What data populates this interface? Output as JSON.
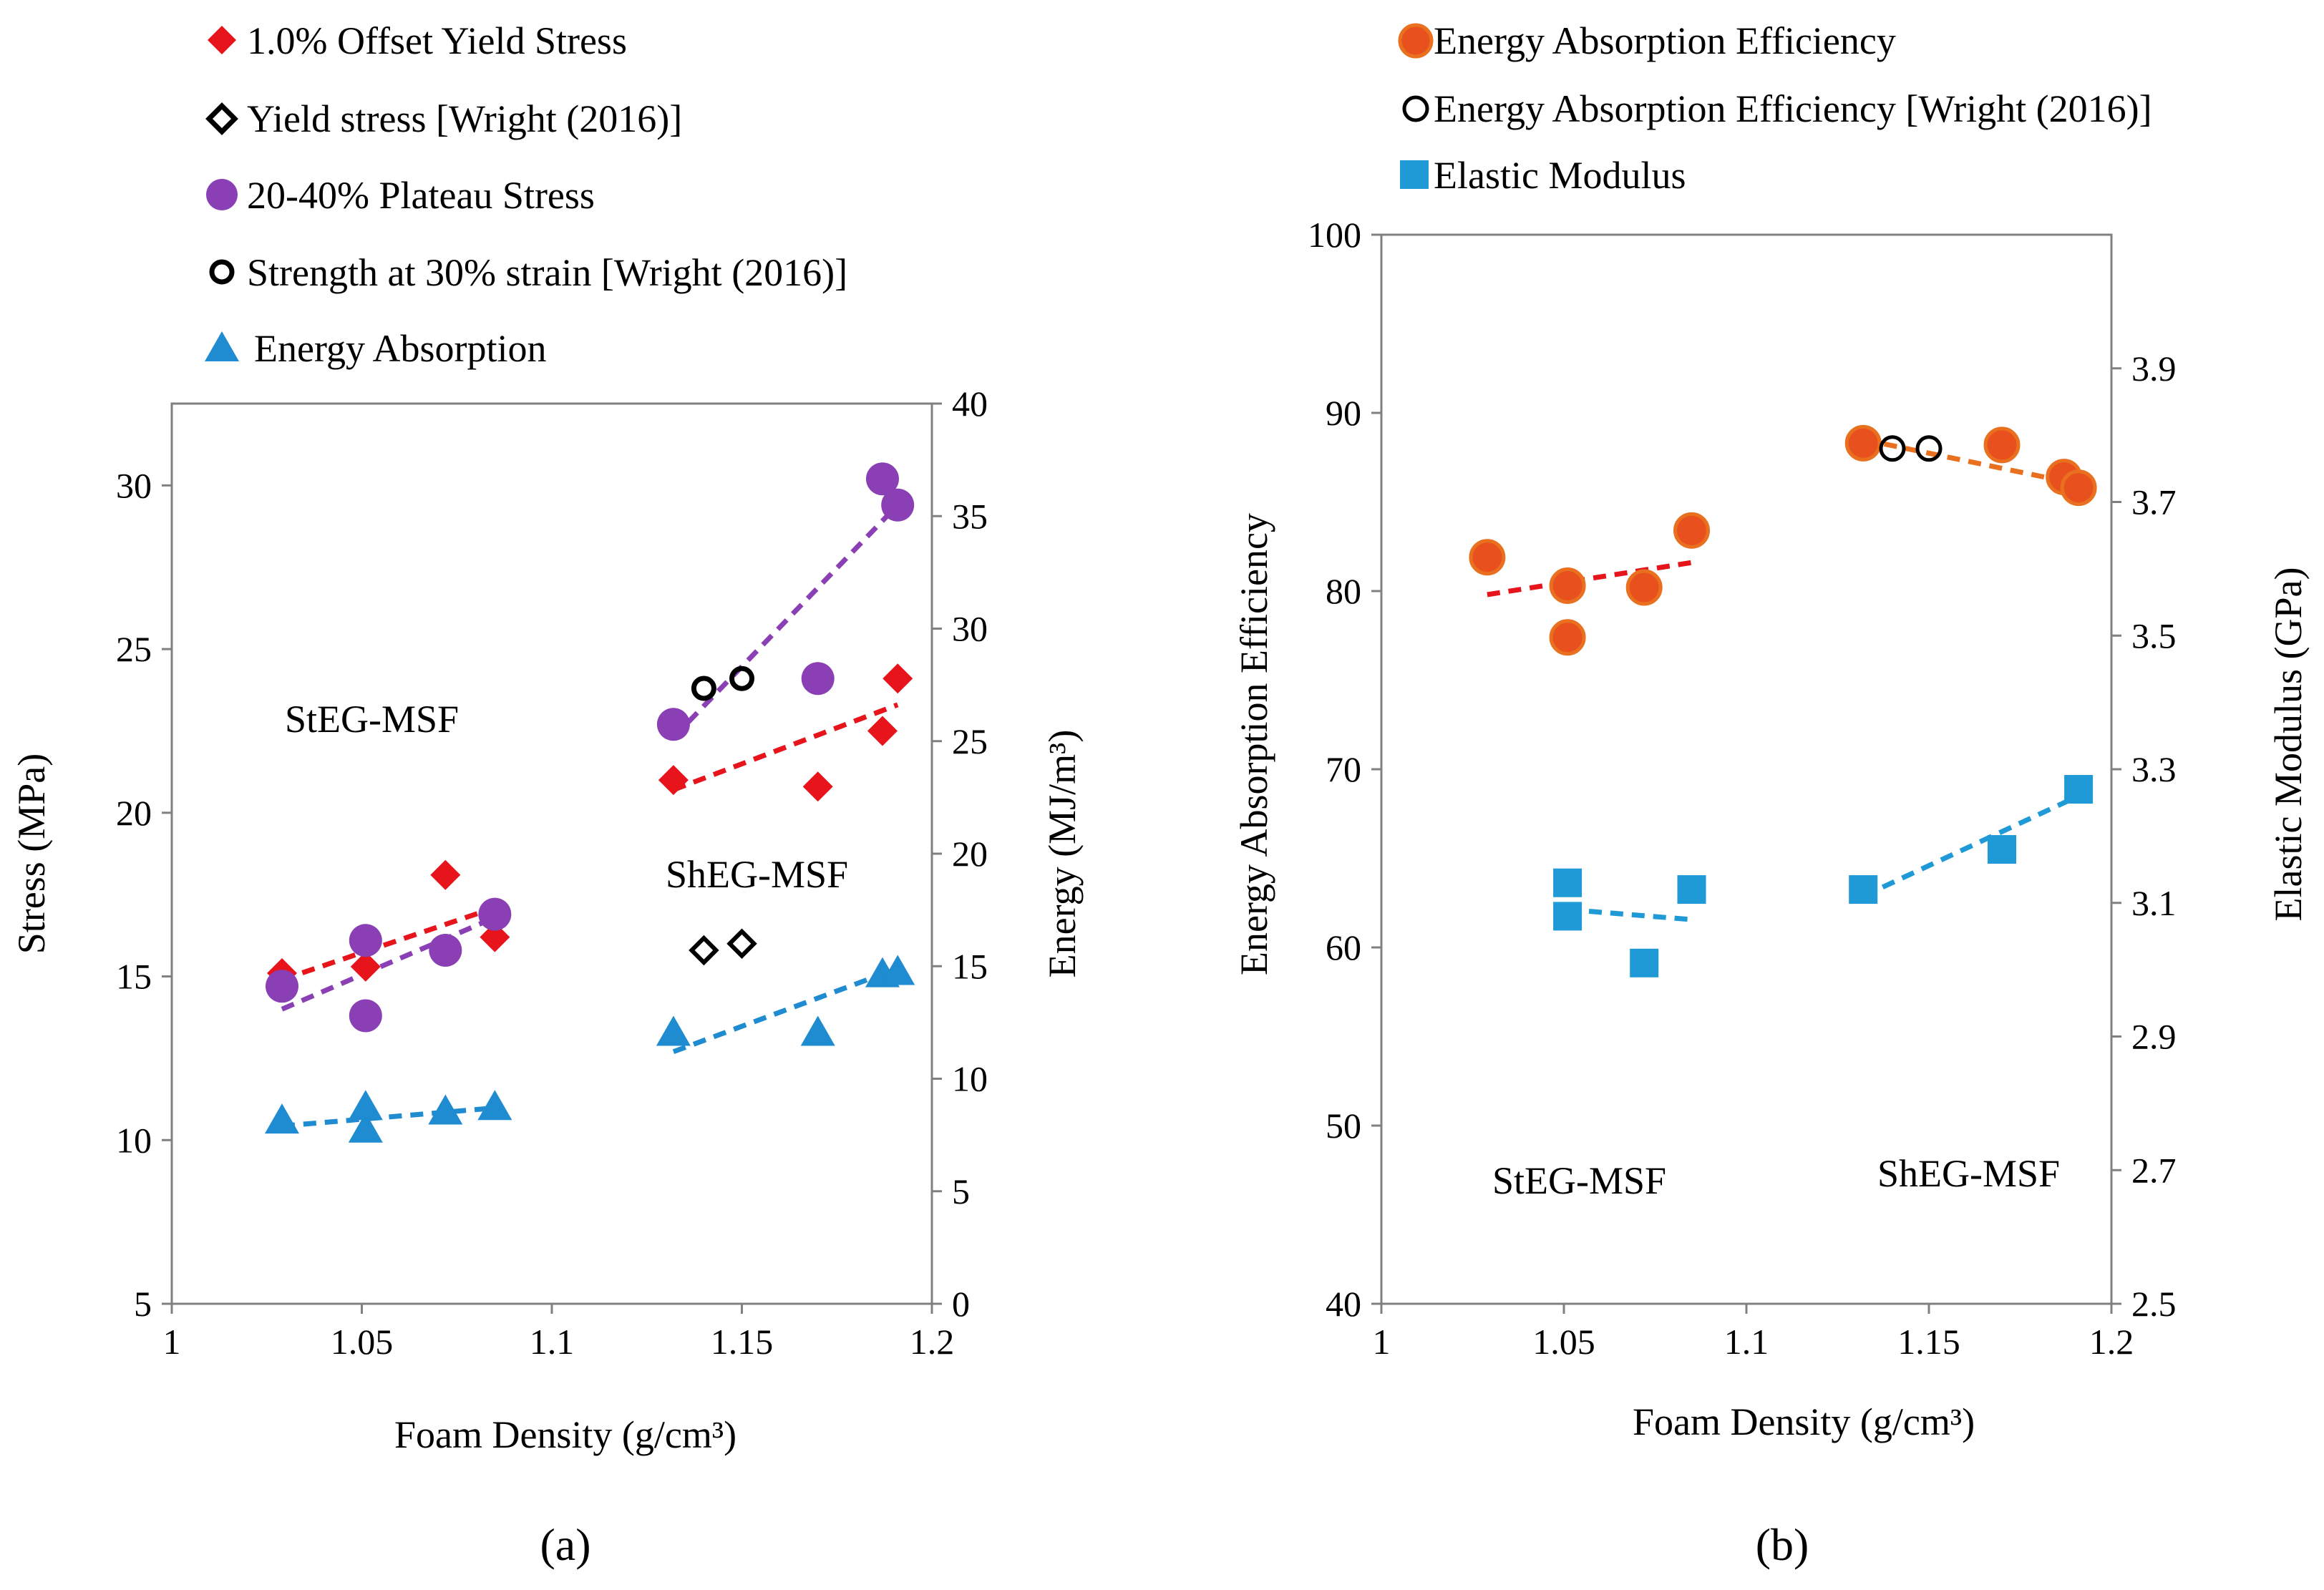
{
  "chart_data": [
    {
      "type": "scatter",
      "panel_label": "(a)",
      "xlabel": "Foam Density (g/cm³)",
      "ylabel": "Stress (MPa)",
      "y2label": "Energy (MJ/m³)",
      "xlim": [
        1,
        1.2
      ],
      "ylim": [
        5,
        32.5
      ],
      "y2lim": [
        0,
        40
      ],
      "xticks": [
        "1",
        "1.05",
        "1.1",
        "1.15",
        "1.2"
      ],
      "yticks": [
        "5",
        "10",
        "15",
        "20",
        "25",
        "30"
      ],
      "y2ticks": [
        "0",
        "5",
        "10",
        "15",
        "20",
        "25",
        "30",
        "35",
        "40"
      ],
      "annotations": [
        "StEG-MSF",
        "ShEG-MSF"
      ],
      "legend": [
        "1.0% Offset Yield Stress",
        "Yield stress [Wright (2016)]",
        "20-40% Plateau Stress",
        "Strength at 30% strain [Wright (2016)]",
        "Energy Absorption"
      ],
      "series": [
        {
          "name": "1.0% Offset Yield Stress",
          "axis": "left",
          "marker": "diamond",
          "color": "#e8141b",
          "x": [
            1.029,
            1.051,
            1.072,
            1.085,
            1.132,
            1.17,
            1.187,
            1.191
          ],
          "y": [
            15.1,
            15.3,
            18.1,
            16.2,
            21.0,
            20.8,
            22.5,
            24.1
          ]
        },
        {
          "name": "Yield stress [Wright (2016)]",
          "axis": "left",
          "marker": "open-diamond",
          "color": "#000000",
          "x": [
            1.14,
            1.15
          ],
          "y": [
            15.8,
            16.0
          ]
        },
        {
          "name": "20-40% Plateau Stress",
          "axis": "left",
          "marker": "circle",
          "color": "#8a3fb5",
          "x": [
            1.029,
            1.051,
            1.051,
            1.072,
            1.085,
            1.132,
            1.17,
            1.187,
            1.191
          ],
          "y": [
            14.7,
            16.1,
            13.8,
            15.8,
            16.9,
            22.7,
            24.1,
            30.2,
            29.4
          ]
        },
        {
          "name": "Strength at 30% strain [Wright (2016)]",
          "axis": "left",
          "marker": "open-circle-dot",
          "color": "#000000",
          "x": [
            1.14,
            1.15
          ],
          "y": [
            23.8,
            24.1
          ]
        },
        {
          "name": "Energy Absorption",
          "axis": "right",
          "marker": "triangle",
          "color": "#1f8bd1",
          "x": [
            1.029,
            1.051,
            1.051,
            1.072,
            1.085,
            1.132,
            1.17,
            1.187,
            1.191
          ],
          "y": [
            8.2,
            7.8,
            8.8,
            8.6,
            8.8,
            12.1,
            12.1,
            14.7,
            14.8
          ]
        }
      ],
      "trendlines": [
        {
          "color": "#e8141b",
          "axis": "left",
          "x": [
            1.029,
            1.085
          ],
          "y": [
            14.9,
            17.1
          ]
        },
        {
          "color": "#8a3fb5",
          "axis": "left",
          "x": [
            1.029,
            1.085
          ],
          "y": [
            14.0,
            16.8
          ]
        },
        {
          "color": "#1f8bd1",
          "axis": "right",
          "x": [
            1.029,
            1.085
          ],
          "y": [
            7.9,
            8.7
          ]
        },
        {
          "color": "#e8141b",
          "axis": "left",
          "x": [
            1.132,
            1.191
          ],
          "y": [
            20.7,
            23.3
          ]
        },
        {
          "color": "#8a3fb5",
          "axis": "left",
          "x": [
            1.132,
            1.191
          ],
          "y": [
            22.3,
            29.4
          ]
        },
        {
          "color": "#1f8bd1",
          "axis": "right",
          "x": [
            1.132,
            1.191
          ],
          "y": [
            11.2,
            14.9
          ]
        }
      ]
    },
    {
      "type": "scatter",
      "panel_label": "(b)",
      "xlabel": "Foam Density (g/cm³)",
      "ylabel": "Energy Absorption Efficiency",
      "y2label": "Elastic Modulus (GPa)",
      "xlim": [
        1,
        1.2
      ],
      "ylim": [
        40,
        100
      ],
      "y2lim": [
        2.5,
        4.1
      ],
      "xticks": [
        "1",
        "1.05",
        "1.1",
        "1.15",
        "1.2"
      ],
      "yticks": [
        "40",
        "50",
        "60",
        "70",
        "80",
        "90",
        "100"
      ],
      "y2ticks": [
        "2.5",
        "2.7",
        "2.9",
        "3.1",
        "3.3",
        "3.5",
        "3.7",
        "3.9"
      ],
      "annotations": [
        "StEG-MSF",
        "ShEG-MSF"
      ],
      "legend": [
        "Energy Absorption Efficiency",
        "Energy Absorption Efficiency [Wright (2016)]",
        "Elastic Modulus"
      ],
      "series": [
        {
          "name": "Energy Absorption Efficiency",
          "axis": "left",
          "marker": "circle",
          "color": "#e8501e",
          "x": [
            1.029,
            1.051,
            1.051,
            1.072,
            1.085,
            1.132,
            1.17,
            1.187,
            1.191
          ],
          "y": [
            81.9,
            80.3,
            77.4,
            80.2,
            83.4,
            88.3,
            88.2,
            86.4,
            85.8
          ]
        },
        {
          "name": "Energy Absorption Efficiency [Wright (2016)]",
          "axis": "left",
          "marker": "open-circle",
          "color": "#000000",
          "x": [
            1.14,
            1.15
          ],
          "y": [
            88.0,
            88.0
          ]
        },
        {
          "name": "Elastic Modulus",
          "axis": "right",
          "marker": "square",
          "color": "#1f9ad6",
          "x": [
            1.051,
            1.051,
            1.072,
            1.085,
            1.132,
            1.17,
            1.191
          ],
          "y": [
            3.13,
            3.08,
            3.01,
            3.12,
            3.12,
            3.18,
            3.27
          ]
        }
      ],
      "trendlines": [
        {
          "color": "#e8141b",
          "axis": "left",
          "x": [
            1.029,
            1.085
          ],
          "y": [
            79.8,
            81.6
          ]
        },
        {
          "color": "#e8701e",
          "axis": "left",
          "x": [
            1.132,
            1.191
          ],
          "y": [
            88.5,
            86.0
          ]
        },
        {
          "color": "#1f9ad6",
          "axis": "right",
          "x": [
            1.051,
            1.085
          ],
          "y": [
            3.09,
            3.075
          ]
        },
        {
          "color": "#1f9ad6",
          "axis": "right",
          "x": [
            1.132,
            1.191
          ],
          "y": [
            3.11,
            3.26
          ]
        }
      ]
    }
  ]
}
